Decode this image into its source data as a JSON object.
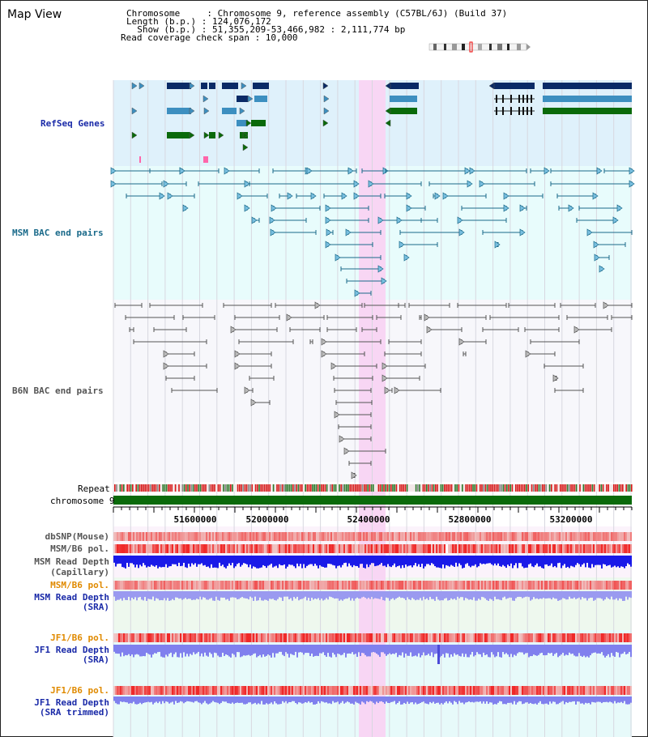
{
  "header": {
    "title": "Map View",
    "lines": [
      "Chromosome     : Chromosome 9, reference assembly (C57BL/6J) (Build 37)",
      "Length (b.p.) : 124,076,172",
      "  Show (b.p.) : 51,355,209-53,466,982 : 2,111,774 bp",
      "Read coverage check span : 10,000"
    ]
  },
  "tracks": {
    "refseq": "RefSeq Genes",
    "msm_bac": "MSM BAC end pairs",
    "b6n_bac": "B6N BAC end pairs",
    "repeat": "Repeat",
    "chromosome": "chromosome 9",
    "dbsnp": "dbSNP(Mouse)",
    "msm_b6_pol": "MSM/B6 pol.",
    "msm_depth_cap_1": "MSM Read Depth",
    "msm_depth_cap_2": "(Capillary)",
    "msm_b6_pol_sra": "MSM/B6 pol.",
    "msm_depth_sra_1": "MSM Read Depth",
    "msm_depth_sra_2": "(SRA)",
    "jf1_b6_pol": "JF1/B6 pol.",
    "jf1_depth_sra_1": "JF1 Read Depth",
    "jf1_depth_sra_2": "(SRA)",
    "jf1_b6_pol_2": "JF1/B6 pol.",
    "jf1_depth_trim_1": "JF1 Read Depth",
    "jf1_depth_trim_2": "(SRA trimmed)"
  },
  "axis": {
    "ticks": [
      "51600000",
      "52000000",
      "52400000",
      "52800000",
      "53200000"
    ]
  },
  "colors": {
    "refseq_bg": "#dff1fb",
    "msm_bg": "#e8fcfc",
    "b6n_bg": "#f7f7fb",
    "highlight": "#f8d6f4",
    "gene_dark": "#0a2a66",
    "gene_mid": "#3d8fc0",
    "gene_green": "#0a6a0a",
    "msm_line": "#1a6a8a",
    "b6n_line": "#555555",
    "depth_blue": "#1a1ae8",
    "depth_purple": "#8080ee"
  }
}
